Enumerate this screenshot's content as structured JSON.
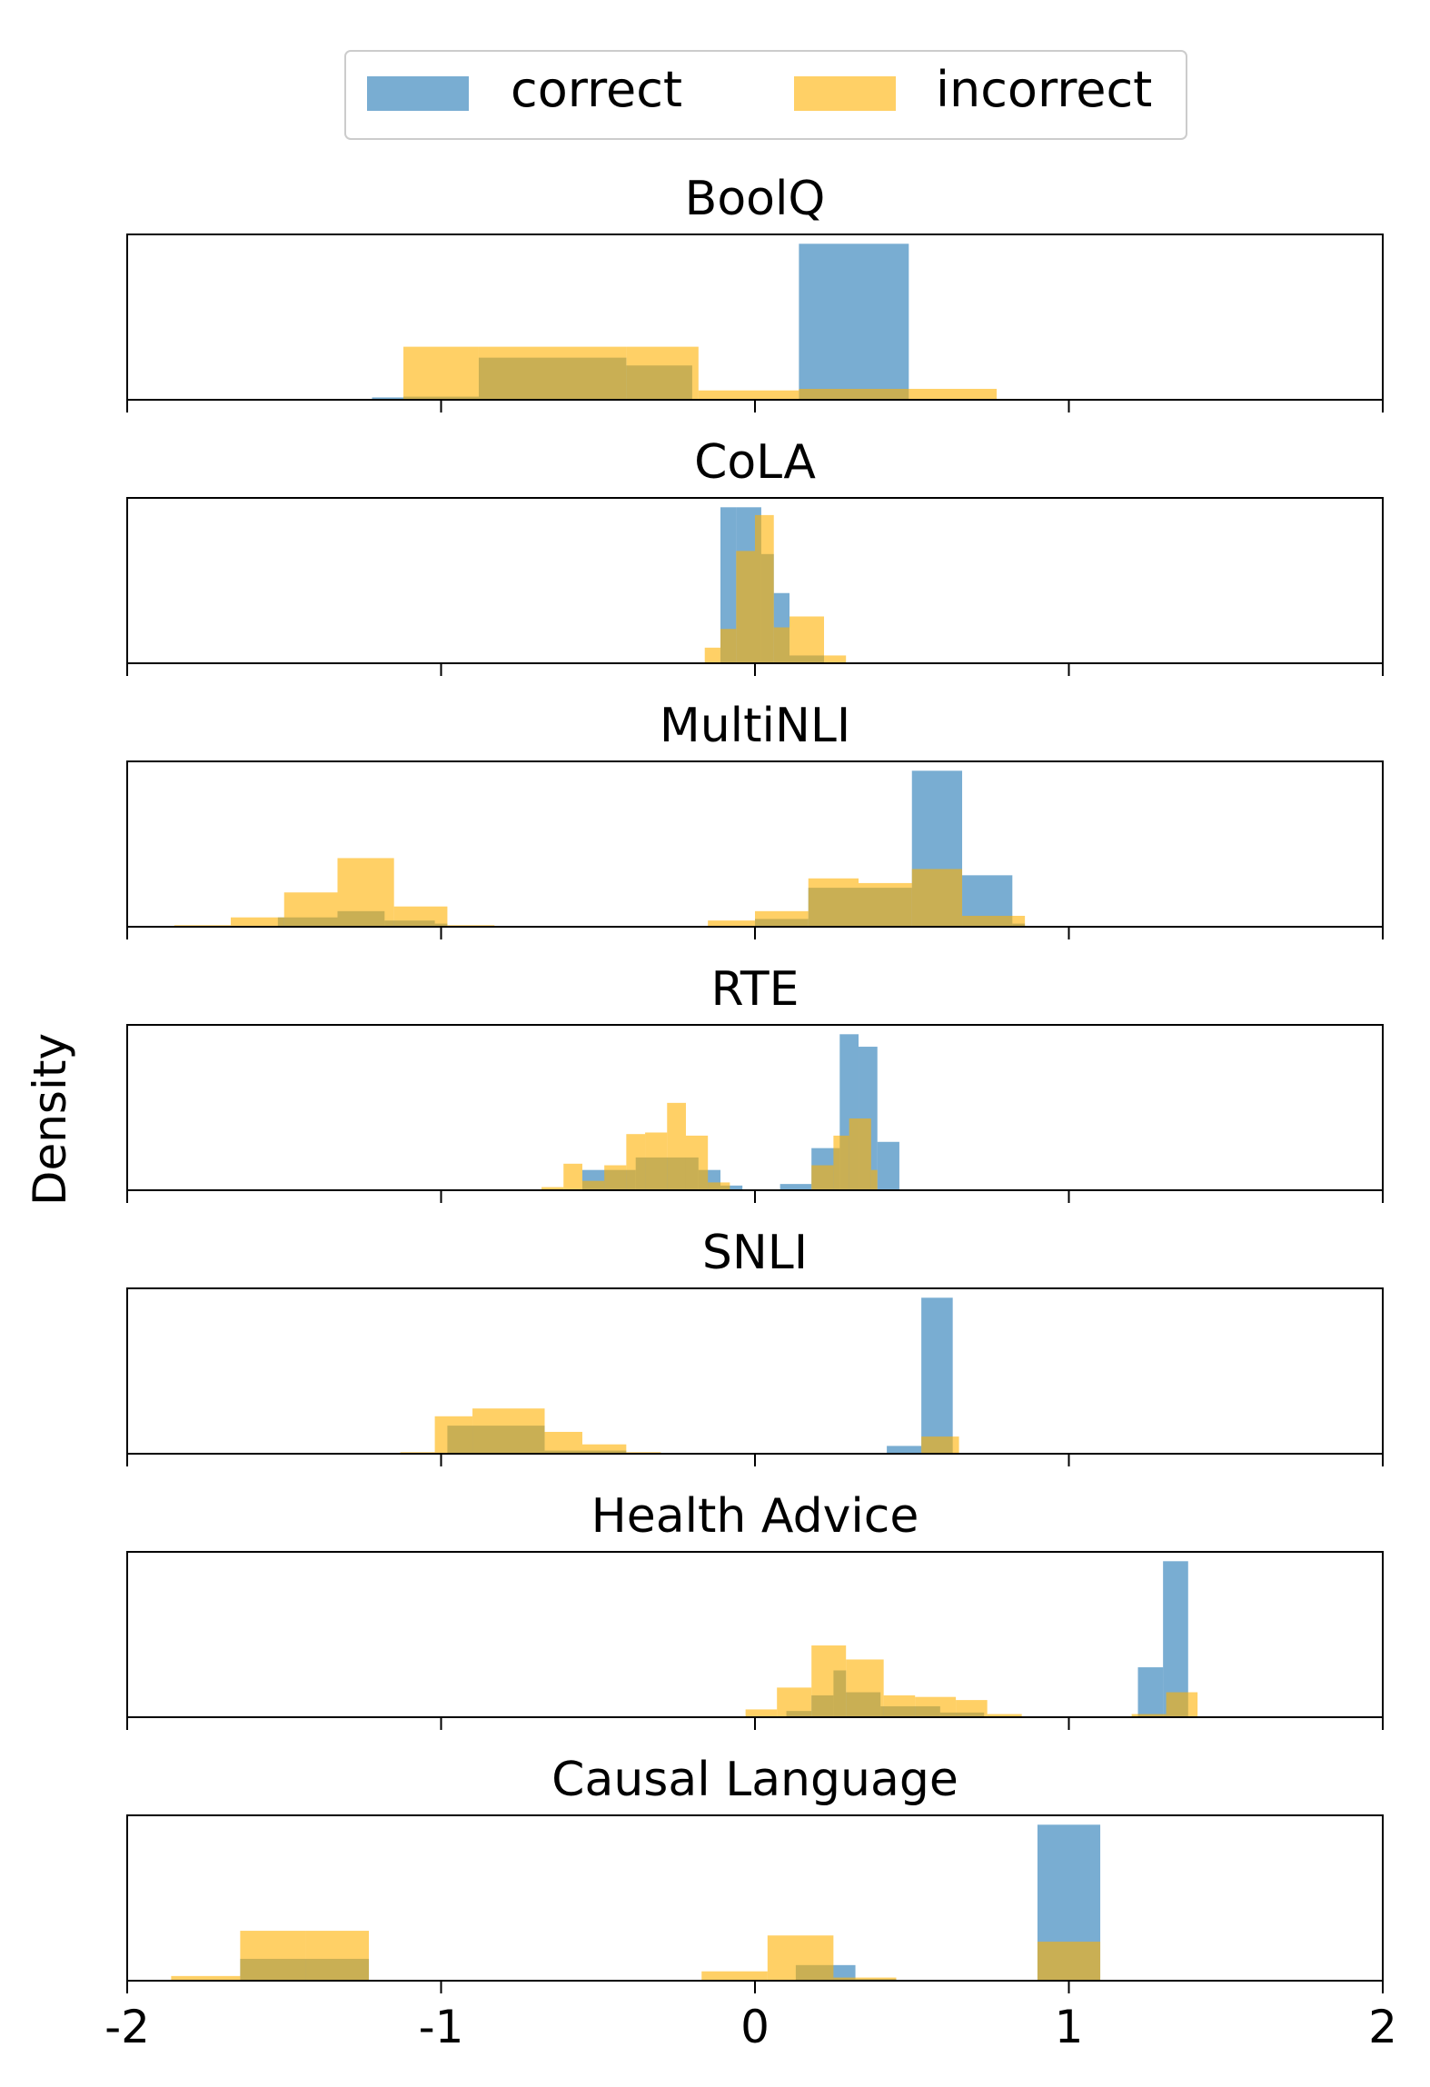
{
  "chart_data": {
    "type": "histogram",
    "ylabel": "Density",
    "xlim": [
      -2,
      2
    ],
    "x_ticks": [
      "-2",
      "-1",
      "0",
      "1",
      "2"
    ],
    "x_tick_values": [
      -2,
      -1,
      0,
      1,
      2
    ],
    "legend": {
      "placement": "top-center",
      "entries": [
        {
          "name": "correct",
          "color": "#1f77b4",
          "alpha": 0.6
        },
        {
          "name": "incorrect",
          "color": "#ffb000",
          "alpha": 0.6
        }
      ]
    },
    "grid": false,
    "panels": [
      {
        "title": "BoolQ",
        "ymax": 1.06,
        "series": [
          {
            "name": "correct",
            "bins": [
              [
                -1.22,
                -1.12,
                0.015
              ],
              [
                -1.12,
                -0.88,
                0.02
              ],
              [
                -0.88,
                -0.41,
                0.27
              ],
              [
                -0.41,
                -0.2,
                0.22
              ],
              [
                0.14,
                0.49,
                1.0
              ]
            ]
          },
          {
            "name": "incorrect",
            "bins": [
              [
                -1.12,
                -0.88,
                0.34
              ],
              [
                -0.88,
                -0.41,
                0.34
              ],
              [
                -0.41,
                -0.18,
                0.34
              ],
              [
                -0.18,
                0.14,
                0.06
              ],
              [
                0.14,
                0.49,
                0.07
              ],
              [
                0.49,
                0.77,
                0.07
              ]
            ]
          }
        ]
      },
      {
        "title": "CoLA",
        "ymax": 1.06,
        "series": [
          {
            "name": "correct",
            "bins": [
              [
                -0.11,
                -0.06,
                1.0
              ],
              [
                -0.06,
                0.02,
                1.0
              ],
              [
                0.02,
                0.06,
                0.7
              ],
              [
                0.06,
                0.11,
                0.45
              ],
              [
                0.11,
                0.22,
                0.05
              ]
            ]
          },
          {
            "name": "incorrect",
            "bins": [
              [
                -0.16,
                -0.11,
                0.1
              ],
              [
                -0.11,
                -0.06,
                0.22
              ],
              [
                -0.06,
                0.0,
                0.72
              ],
              [
                0.0,
                0.06,
                0.95
              ],
              [
                0.06,
                0.11,
                0.23
              ],
              [
                0.11,
                0.22,
                0.3
              ],
              [
                0.22,
                0.29,
                0.05
              ]
            ]
          }
        ]
      },
      {
        "title": "MultiNLI",
        "ymax": 1.06,
        "series": [
          {
            "name": "correct",
            "bins": [
              [
                -1.52,
                -1.33,
                0.06
              ],
              [
                -1.33,
                -1.18,
                0.1
              ],
              [
                -1.18,
                -1.02,
                0.04
              ],
              [
                -1.02,
                -0.98,
                0.02
              ],
              [
                0.0,
                0.17,
                0.05
              ],
              [
                0.17,
                0.5,
                0.25
              ],
              [
                0.5,
                0.66,
                1.0
              ],
              [
                0.66,
                0.82,
                0.33
              ],
              [
                0.82,
                0.86,
                0.02
              ]
            ]
          },
          {
            "name": "incorrect",
            "bins": [
              [
                -1.85,
                -1.67,
                0.01
              ],
              [
                -1.67,
                -1.5,
                0.06
              ],
              [
                -1.5,
                -1.33,
                0.22
              ],
              [
                -1.33,
                -1.15,
                0.44
              ],
              [
                -1.15,
                -0.98,
                0.13
              ],
              [
                -0.98,
                -0.83,
                0.01
              ],
              [
                -0.15,
                0.0,
                0.04
              ],
              [
                0.0,
                0.17,
                0.1
              ],
              [
                0.17,
                0.33,
                0.31
              ],
              [
                0.33,
                0.5,
                0.28
              ],
              [
                0.5,
                0.66,
                0.37
              ],
              [
                0.66,
                0.86,
                0.07
              ]
            ]
          }
        ]
      },
      {
        "title": "RTE",
        "ymax": 1.06,
        "series": [
          {
            "name": "correct",
            "bins": [
              [
                -0.55,
                -0.38,
                0.13
              ],
              [
                -0.38,
                -0.18,
                0.21
              ],
              [
                -0.18,
                -0.11,
                0.13
              ],
              [
                -0.11,
                -0.04,
                0.03
              ],
              [
                0.08,
                0.18,
                0.04
              ],
              [
                0.18,
                0.27,
                0.27
              ],
              [
                0.27,
                0.33,
                1.0
              ],
              [
                0.33,
                0.39,
                0.92
              ],
              [
                0.39,
                0.46,
                0.31
              ]
            ]
          },
          {
            "name": "incorrect",
            "bins": [
              [
                -0.68,
                -0.61,
                0.02
              ],
              [
                -0.61,
                -0.55,
                0.17
              ],
              [
                -0.55,
                -0.48,
                0.06
              ],
              [
                -0.48,
                -0.41,
                0.16
              ],
              [
                -0.41,
                -0.35,
                0.36
              ],
              [
                -0.35,
                -0.28,
                0.37
              ],
              [
                -0.28,
                -0.22,
                0.56
              ],
              [
                -0.22,
                -0.15,
                0.35
              ],
              [
                -0.15,
                -0.08,
                0.05
              ],
              [
                0.18,
                0.25,
                0.16
              ],
              [
                0.25,
                0.3,
                0.35
              ],
              [
                0.3,
                0.37,
                0.46
              ],
              [
                0.37,
                0.39,
                0.13
              ]
            ]
          }
        ]
      },
      {
        "title": "SNLI",
        "ymax": 1.06,
        "series": [
          {
            "name": "correct",
            "bins": [
              [
                -0.98,
                -0.67,
                0.18
              ],
              [
                -0.67,
                -0.41,
                0.02
              ],
              [
                0.42,
                0.53,
                0.05
              ],
              [
                0.53,
                0.63,
                1.0
              ]
            ]
          },
          {
            "name": "incorrect",
            "bins": [
              [
                -1.13,
                -1.02,
                0.01
              ],
              [
                -1.02,
                -0.9,
                0.24
              ],
              [
                -0.9,
                -0.67,
                0.29
              ],
              [
                -0.67,
                -0.55,
                0.14
              ],
              [
                -0.55,
                -0.41,
                0.06
              ],
              [
                -0.41,
                -0.3,
                0.01
              ],
              [
                0.53,
                0.65,
                0.11
              ]
            ]
          }
        ]
      },
      {
        "title": "Health Advice",
        "ymax": 1.06,
        "series": [
          {
            "name": "correct",
            "bins": [
              [
                0.1,
                0.18,
                0.04
              ],
              [
                0.18,
                0.25,
                0.14
              ],
              [
                0.25,
                0.29,
                0.3
              ],
              [
                0.29,
                0.4,
                0.16
              ],
              [
                0.4,
                0.59,
                0.07
              ],
              [
                0.59,
                0.73,
                0.03
              ],
              [
                1.22,
                1.3,
                0.32
              ],
              [
                1.3,
                1.38,
                1.0
              ]
            ]
          },
          {
            "name": "incorrect",
            "bins": [
              [
                -0.03,
                0.07,
                0.05
              ],
              [
                0.07,
                0.18,
                0.19
              ],
              [
                0.18,
                0.29,
                0.46
              ],
              [
                0.29,
                0.41,
                0.37
              ],
              [
                0.41,
                0.51,
                0.14
              ],
              [
                0.51,
                0.64,
                0.13
              ],
              [
                0.64,
                0.74,
                0.11
              ],
              [
                0.74,
                0.85,
                0.02
              ],
              [
                1.2,
                1.31,
                0.02
              ],
              [
                1.31,
                1.41,
                0.16
              ]
            ]
          }
        ]
      },
      {
        "title": "Causal Language",
        "ymax": 1.06,
        "series": [
          {
            "name": "correct",
            "bins": [
              [
                -1.64,
                -1.23,
                0.14
              ],
              [
                0.13,
                0.32,
                0.1
              ],
              [
                0.32,
                0.45,
                0.01
              ],
              [
                0.9,
                1.1,
                1.0
              ]
            ]
          },
          {
            "name": "incorrect",
            "bins": [
              [
                -1.86,
                -1.64,
                0.03
              ],
              [
                -1.64,
                -1.43,
                0.32
              ],
              [
                -1.43,
                -1.23,
                0.32
              ],
              [
                -0.17,
                0.04,
                0.06
              ],
              [
                0.04,
                0.25,
                0.29
              ],
              [
                0.25,
                0.45,
                0.02
              ],
              [
                0.9,
                1.1,
                0.25
              ]
            ]
          }
        ]
      }
    ]
  }
}
